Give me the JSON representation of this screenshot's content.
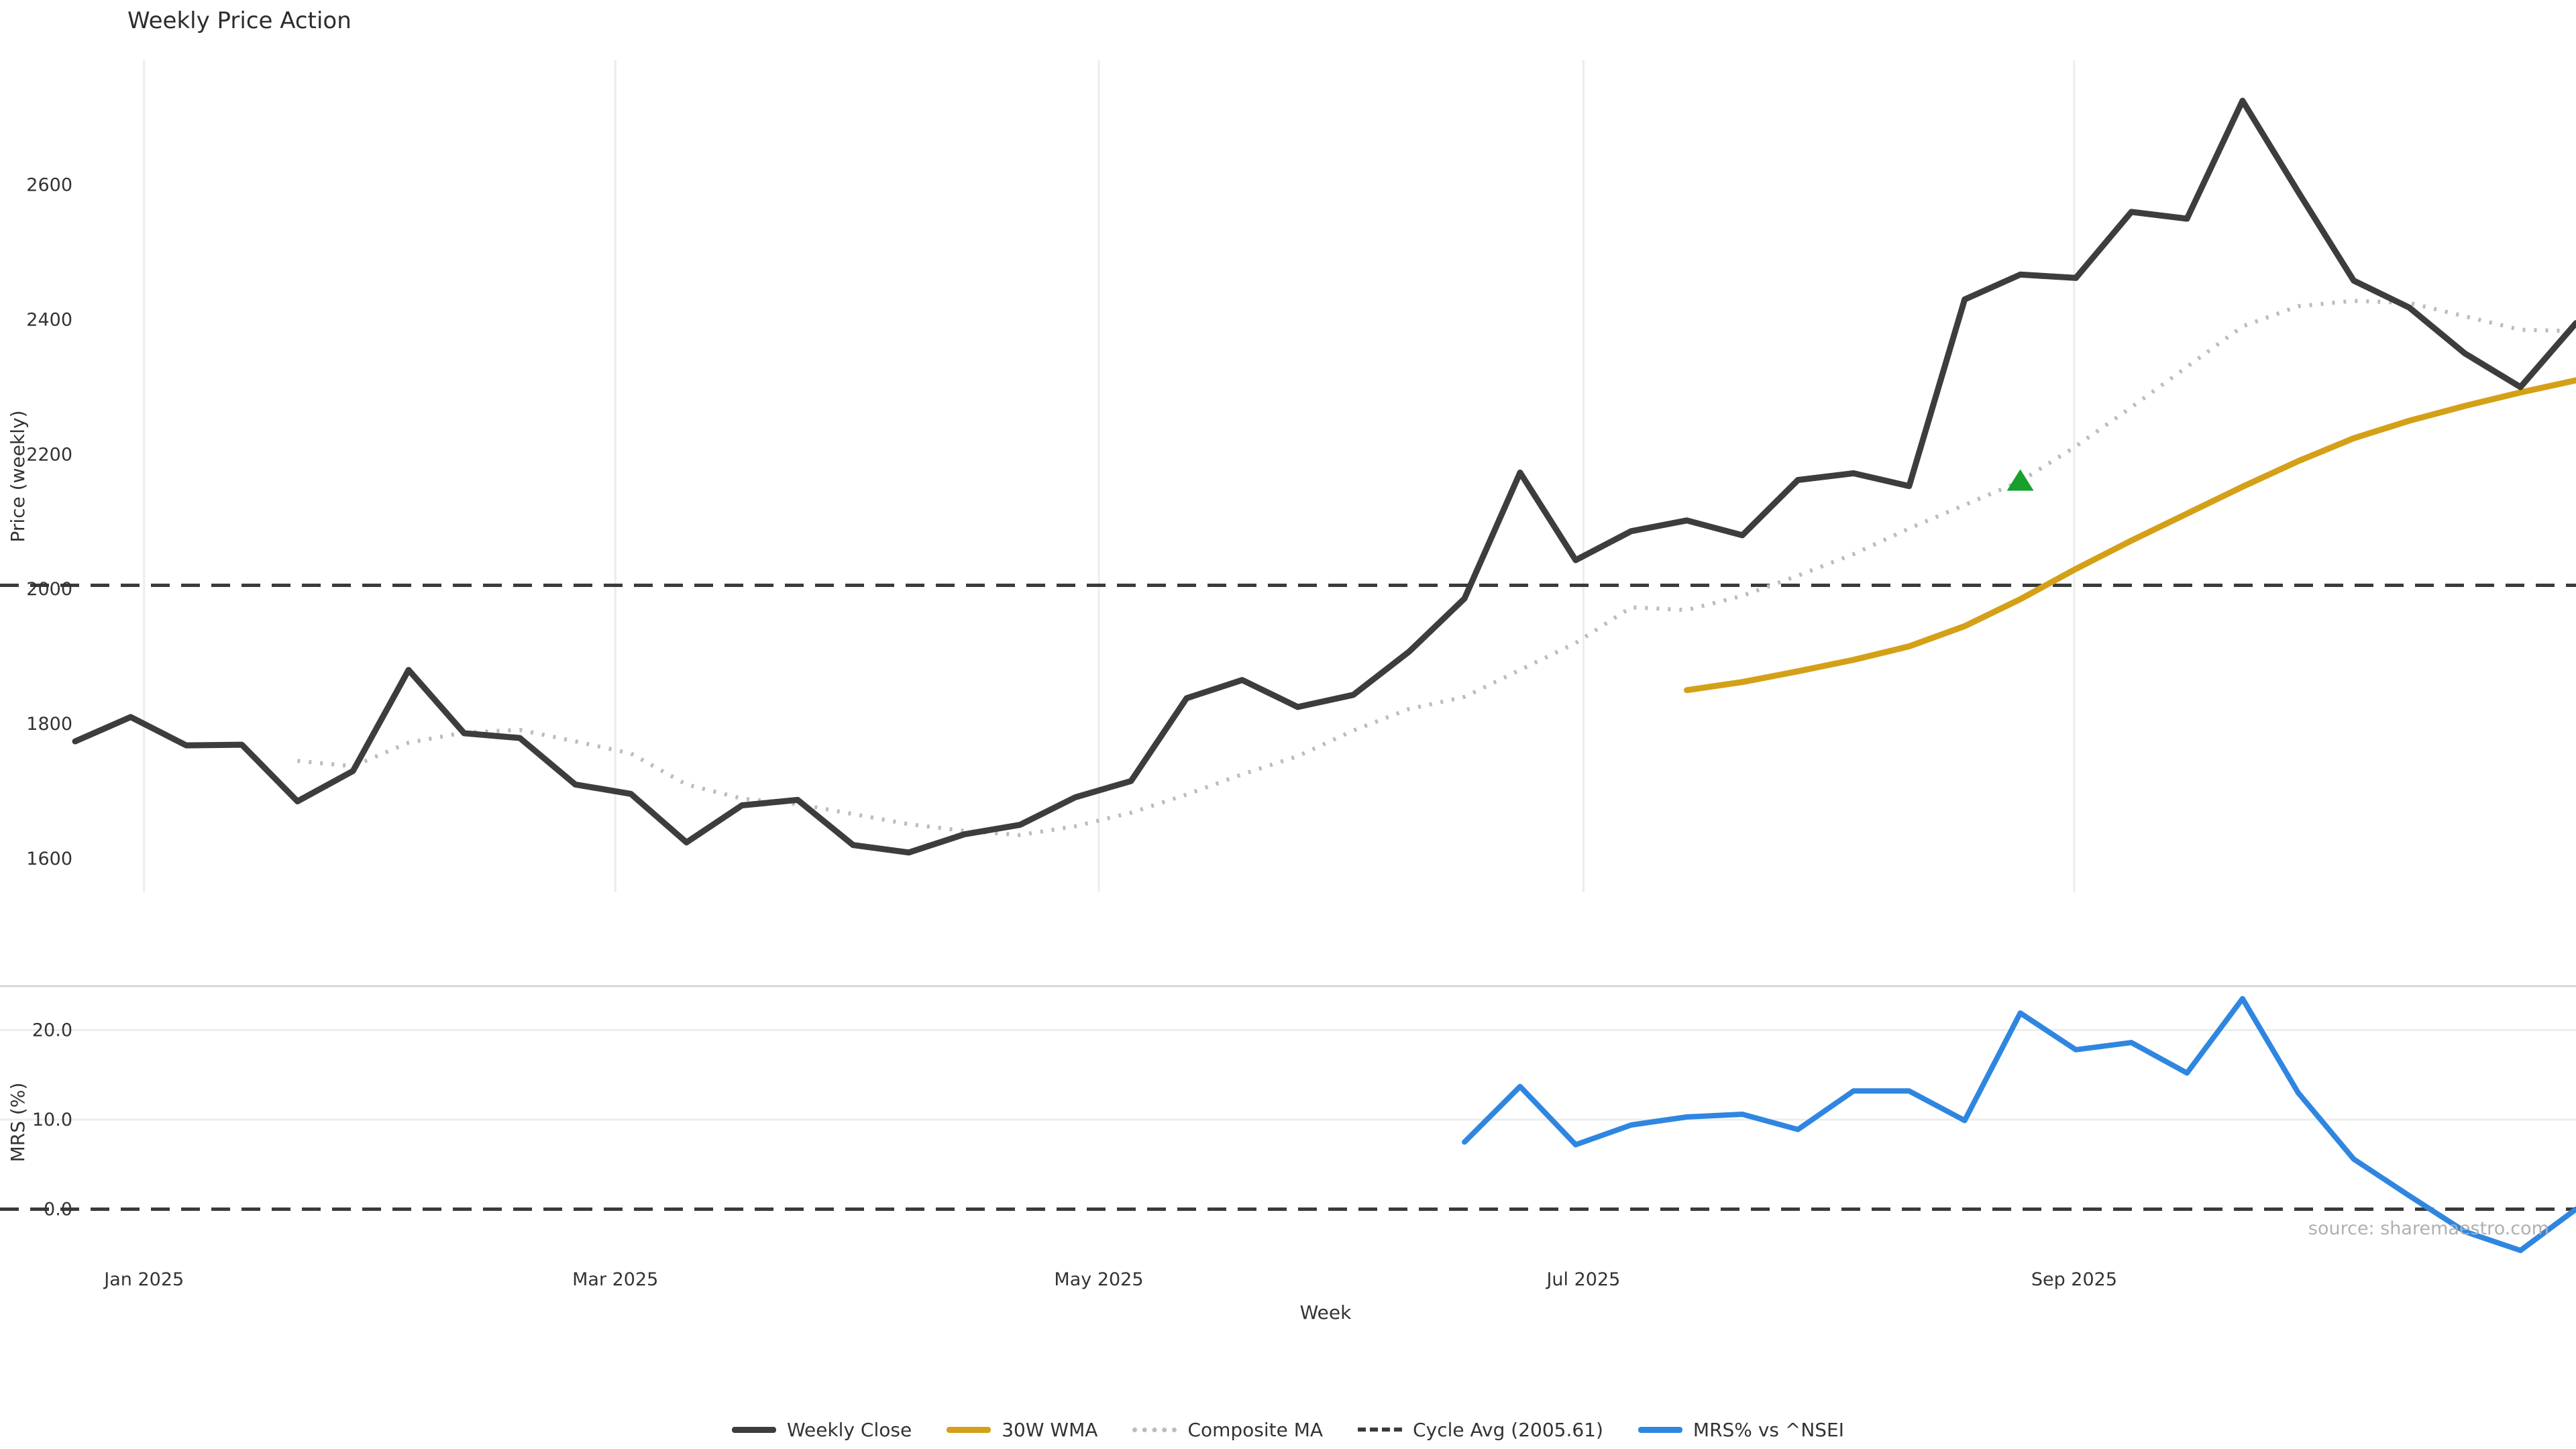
{
  "title": "Weekly Price Action",
  "source_note": "source: sharemaestro.com",
  "colors": {
    "weekly_close": "#3d3d3d",
    "wma": "#d4a017",
    "composite": "#bcbcbc",
    "cycle_avg": "#3a3a3a",
    "mrs": "#2f86e0",
    "signal_marker": "#17a02c",
    "grid": "#ececec",
    "spine": "#cfcfcf",
    "text": "#333333",
    "muted": "#b0b0b0"
  },
  "axes": {
    "price_ylabel": "Price (weekly)",
    "mrs_ylabel": "MRS (%)",
    "xlabel": "Week"
  },
  "chart_data": [
    {
      "type": "line",
      "panel": "price",
      "title": "Weekly Price Action",
      "xlabel": "Week",
      "ylabel": "Price (weekly)",
      "x_unit": "week_index_starting_late_Dec_2024",
      "n_points": 46,
      "grid": "vertical-months-only",
      "x_ticks": [
        {
          "index": 1.24,
          "label": "Jan 2025"
        },
        {
          "index": 9.72,
          "label": "Mar 2025"
        },
        {
          "index": 18.42,
          "label": "May 2025"
        },
        {
          "index": 27.14,
          "label": "Jul 2025"
        },
        {
          "index": 35.97,
          "label": "Sep 2025"
        }
      ],
      "y_ticks": [
        "1600",
        "1800",
        "2000",
        "2200",
        "2400",
        "2600"
      ],
      "ylim": [
        1550,
        2785
      ],
      "cycle_avg_value": 2005.61,
      "series": [
        {
          "name": "Weekly Close",
          "style": "solid",
          "values": [
            1774,
            1810,
            1768,
            1769,
            1685,
            1730,
            1880,
            1786,
            1779,
            1710,
            1696,
            1624,
            1679,
            1687,
            1620,
            1609,
            1636,
            1650,
            1691,
            1715,
            1838,
            1865,
            1825,
            1843,
            1907,
            1986,
            2173,
            2043,
            2086,
            2102,
            2080,
            2162,
            2172,
            2153,
            2430,
            2467,
            2462,
            2560,
            2550,
            2725,
            2590,
            2458,
            2418,
            2350,
            2300,
            2395
          ]
        },
        {
          "name": "30W WMA",
          "style": "solid",
          "values": [
            null,
            null,
            null,
            null,
            null,
            null,
            null,
            null,
            null,
            null,
            null,
            null,
            null,
            null,
            null,
            null,
            null,
            null,
            null,
            null,
            null,
            null,
            null,
            null,
            null,
            null,
            null,
            null,
            null,
            1850,
            1862,
            1878,
            1895,
            1915,
            1945,
            1985,
            2030,
            2072,
            2112,
            2152,
            2190,
            2224,
            2250,
            2272,
            2292,
            2310
          ]
        },
        {
          "name": "Composite MA",
          "style": "dotted",
          "values": [
            null,
            null,
            null,
            null,
            1745,
            1737,
            1772,
            1787,
            1791,
            1774,
            1756,
            1710,
            1689,
            1681,
            1666,
            1651,
            1641,
            1635,
            1648,
            1668,
            1695,
            1725,
            1752,
            1790,
            1822,
            1840,
            1880,
            1920,
            1973,
            1969,
            1990,
            2020,
            2052,
            2090,
            2125,
            2160,
            2212,
            2270,
            2330,
            2390,
            2420,
            2428,
            2425,
            2405,
            2385,
            2383
          ]
        },
        {
          "name": "Cycle Avg (2005.61)",
          "style": "dashed",
          "constant": 2005.61
        }
      ],
      "marker": {
        "shape": "triangle-up",
        "on_series": "Composite MA",
        "index": 35,
        "value": 2160
      }
    },
    {
      "type": "line",
      "panel": "mrs",
      "ylabel": "MRS (%)",
      "y_ticks": [
        "0.0",
        "10.0",
        "20.0"
      ],
      "ylim": [
        -5.8,
        24.9
      ],
      "zero_line": 0.0,
      "grid": "horizontal",
      "series": [
        {
          "name": "MRS% vs ^NSEI",
          "style": "solid",
          "values": [
            null,
            null,
            null,
            null,
            null,
            null,
            null,
            null,
            null,
            null,
            null,
            null,
            null,
            null,
            null,
            null,
            null,
            null,
            null,
            null,
            null,
            null,
            null,
            null,
            null,
            7.5,
            13.7,
            7.2,
            9.4,
            10.3,
            10.6,
            8.9,
            13.2,
            13.2,
            9.9,
            21.9,
            17.8,
            18.6,
            15.2,
            23.5,
            13.0,
            5.6,
            1.5,
            -2.5,
            -4.6,
            0.0
          ]
        }
      ]
    }
  ],
  "legend": [
    {
      "label": "Weekly Close",
      "style": "solid",
      "color": "#3d3d3d"
    },
    {
      "label": "30W WMA",
      "style": "solid",
      "color": "#d4a017"
    },
    {
      "label": "Composite MA",
      "style": "dotted",
      "color": "#bcbcbc"
    },
    {
      "label": "Cycle Avg (2005.61)",
      "style": "dashed",
      "color": "#3a3a3a"
    },
    {
      "label": "MRS% vs ^NSEI",
      "style": "solid",
      "color": "#2f86e0"
    }
  ]
}
